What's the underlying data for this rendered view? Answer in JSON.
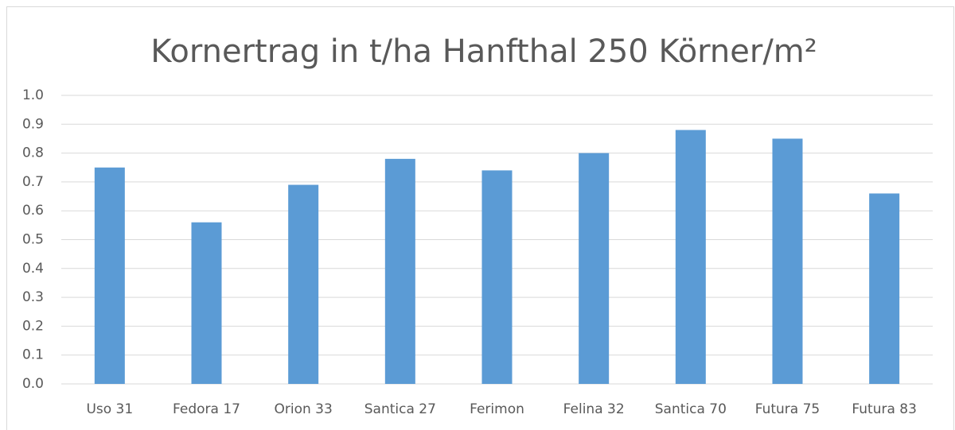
{
  "chart_data": {
    "type": "bar",
    "title": "Kornertrag in t/ha Hanfthal 250 Körner/m²",
    "categories": [
      "Uso 31",
      "Fedora 17",
      "Orion 33",
      "Santica 27",
      "Ferimon",
      "Felina 32",
      "Santica 70",
      "Futura 75",
      "Futura 83"
    ],
    "values": [
      0.75,
      0.56,
      0.69,
      0.78,
      0.74,
      0.8,
      0.88,
      0.85,
      0.66
    ],
    "color": "#5b9bd5",
    "ylim": [
      0,
      1
    ],
    "yticks": [
      {
        "value": 0,
        "label": "0.0"
      },
      0.1,
      0.2,
      0.3,
      0.4,
      0.5,
      0.6,
      0.7,
      0.8,
      0.9,
      {
        "value": 1,
        "label": "1.0"
      }
    ],
    "grid": true
  }
}
